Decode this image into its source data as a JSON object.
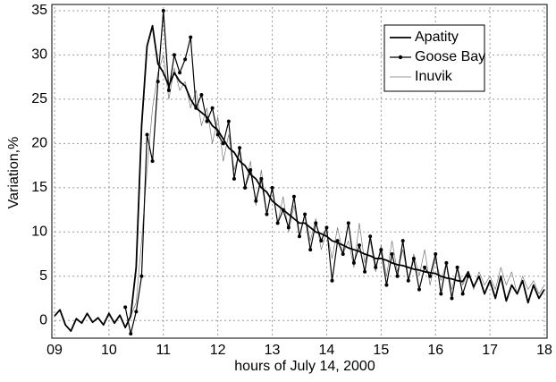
{
  "chart_data": {
    "type": "line",
    "x_label": "hours of July 14, 2000",
    "y_label": "Variation,%",
    "x": [
      9,
      9.1,
      9.2,
      9.3,
      9.4,
      9.5,
      9.6,
      9.7,
      9.8,
      9.9,
      10,
      10.1,
      10.2,
      10.3,
      10.4,
      10.5,
      10.6,
      10.7,
      10.8,
      10.9,
      11,
      11.1,
      11.2,
      11.3,
      11.4,
      11.5,
      11.6,
      11.7,
      11.8,
      11.9,
      12,
      12.1,
      12.2,
      12.3,
      12.4,
      12.5,
      12.6,
      12.7,
      12.8,
      12.9,
      13,
      13.1,
      13.2,
      13.3,
      13.4,
      13.5,
      13.6,
      13.7,
      13.8,
      13.9,
      14,
      14.1,
      14.2,
      14.3,
      14.4,
      14.5,
      14.6,
      14.7,
      14.8,
      14.9,
      15,
      15.1,
      15.2,
      15.3,
      15.4,
      15.5,
      15.6,
      15.7,
      15.8,
      15.9,
      16,
      16.1,
      16.2,
      16.3,
      16.4,
      16.5,
      16.6,
      16.7,
      16.8,
      16.9,
      17,
      17.1,
      17.2,
      17.3,
      17.4,
      17.5,
      17.6,
      17.7,
      17.8,
      17.9,
      18
    ],
    "series": [
      {
        "name": "Apatity",
        "color": "#000000",
        "values": [
          0.5,
          1.2,
          -0.5,
          -1.2,
          0.2,
          -0.3,
          0.8,
          -0.2,
          0.3,
          -0.5,
          0.8,
          -0.3,
          0.6,
          -0.8,
          0.5,
          6,
          22,
          31,
          33.3,
          29,
          28,
          26.5,
          28,
          27,
          26.5,
          25,
          24,
          23.5,
          23,
          22,
          21.5,
          20.5,
          19.5,
          19,
          18,
          17.5,
          16.5,
          16,
          15,
          14.5,
          13.5,
          13,
          12.5,
          12,
          11.5,
          11,
          11,
          10.5,
          10,
          9.8,
          9.5,
          9,
          8.8,
          8.5,
          8.2,
          8,
          7.8,
          7.5,
          7.3,
          7,
          7,
          6.8,
          6.5,
          6.3,
          6.2,
          6,
          5.8,
          5.7,
          5.5,
          5.4,
          5.3,
          5,
          4.8,
          4.7,
          4.5,
          4.4,
          5.5,
          3.8,
          5,
          3,
          4.5,
          2.5,
          5,
          2.2,
          4,
          3,
          4.5,
          2,
          4,
          2.5,
          3.5
        ]
      },
      {
        "name": "Goose Bay",
        "color": "#000000",
        "values": [
          null,
          null,
          null,
          null,
          null,
          null,
          null,
          null,
          null,
          null,
          null,
          null,
          null,
          1.5,
          -1.5,
          1,
          5,
          21,
          18,
          27,
          35,
          26,
          30,
          28,
          29.5,
          32,
          24,
          25.5,
          22.5,
          24,
          21,
          20,
          22.5,
          16,
          19.5,
          15,
          17,
          13.5,
          16,
          12,
          15,
          11,
          12.5,
          10.5,
          14,
          9.5,
          12,
          8,
          11,
          9,
          10.5,
          4.5,
          9,
          7.5,
          11,
          6.5,
          8.5,
          5.5,
          9.5,
          6,
          8,
          4,
          7.5,
          5,
          9,
          4.5,
          7,
          3.5,
          6,
          5,
          7.5,
          3,
          6.5,
          2.5,
          6,
          3,
          5,
          null,
          null,
          null,
          null,
          null,
          null,
          null,
          null,
          null,
          null,
          null,
          null,
          null,
          null
        ]
      },
      {
        "name": "Inuvik",
        "color": "#777777",
        "values": [
          null,
          null,
          null,
          null,
          null,
          null,
          null,
          null,
          null,
          null,
          null,
          null,
          null,
          null,
          0.5,
          2,
          9,
          17,
          24,
          28,
          30,
          25,
          28.5,
          26,
          27,
          24,
          26,
          22,
          24,
          20,
          23,
          18,
          21,
          17,
          19,
          15,
          18,
          13,
          17,
          12,
          15,
          11,
          14,
          10,
          13,
          9.5,
          12,
          9,
          11.5,
          8,
          10,
          7,
          10.5,
          7.5,
          9,
          6,
          11,
          6.5,
          9,
          5.5,
          8.5,
          5,
          9,
          5.5,
          8,
          4.5,
          7.5,
          5,
          8,
          4,
          7,
          4.5,
          6.5,
          3.5,
          6,
          4,
          5.5,
          3.5,
          5.5,
          4,
          5,
          3.5,
          6,
          4,
          5.5,
          3,
          5,
          3.5,
          4.5,
          3,
          4
        ]
      }
    ],
    "xlim": [
      9,
      18
    ],
    "xticks": [
      {
        "value": 9,
        "label": "09"
      },
      10,
      11,
      12,
      13,
      14,
      15,
      16,
      17,
      18
    ],
    "ylim": [
      -2,
      35.4
    ],
    "yticks": [
      0,
      5,
      10,
      15,
      20,
      25,
      30,
      35
    ],
    "grid": true,
    "legend": "top-right"
  }
}
